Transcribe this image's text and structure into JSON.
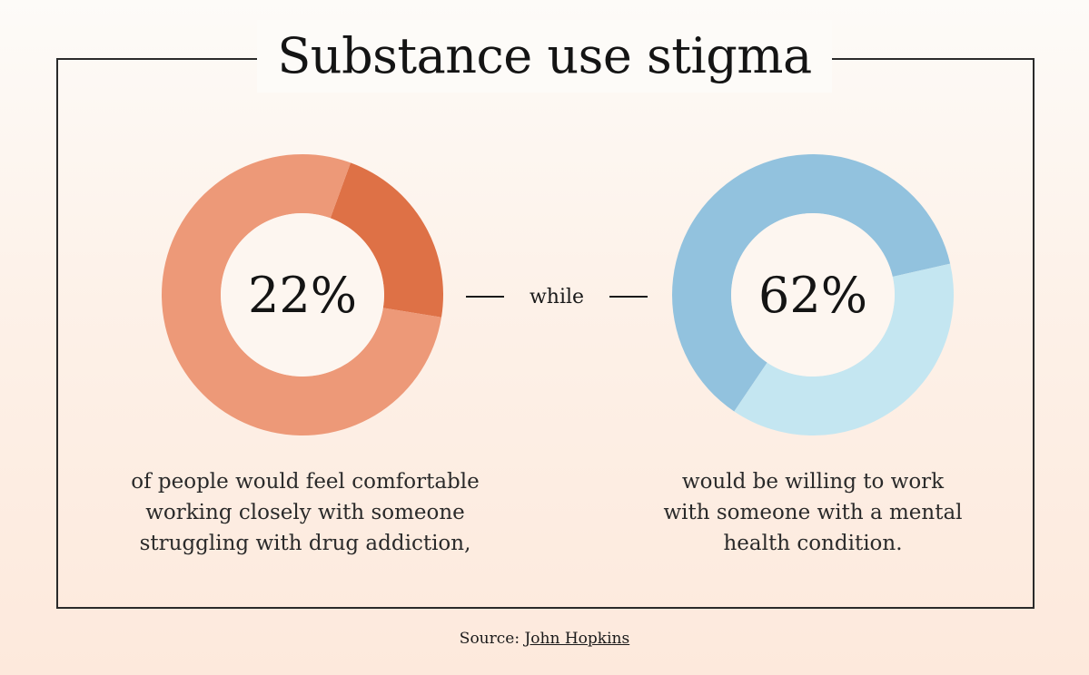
{
  "title": "Substance use stigma",
  "connector": "while",
  "chart_data": [
    {
      "type": "pie",
      "subtype": "donut",
      "center_label": "22%",
      "slices": [
        {
          "label": "comfortable",
          "value": 22,
          "color": "#de7146"
        },
        {
          "label": "remainder",
          "value": 78,
          "color": "#ed9978"
        }
      ],
      "caption_lines": [
        "of people would feel comfortable",
        "working closely with someone",
        "struggling with drug addiction,"
      ]
    },
    {
      "type": "pie",
      "subtype": "donut",
      "center_label": "62%",
      "slices": [
        {
          "label": "willing",
          "value": 62,
          "color": "#92c2de"
        },
        {
          "label": "remainder",
          "value": 38,
          "color": "#c4e6f1"
        }
      ],
      "caption_lines": [
        "would be willing to work",
        "with someone with a mental",
        "health condition."
      ]
    }
  ],
  "source": {
    "label": "Source:",
    "link_text": "John Hopkins"
  }
}
